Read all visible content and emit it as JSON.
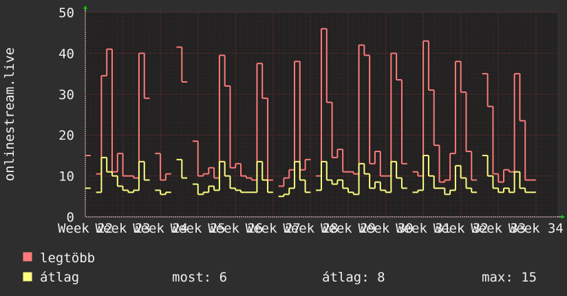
{
  "chart_data": {
    "type": "step",
    "y_label": "onlinestream.live",
    "xlim": [
      0,
      88
    ],
    "xticks": [
      {
        "value": 0,
        "label": "Week 22"
      },
      {
        "value": 7,
        "label": "Week 23"
      },
      {
        "value": 14,
        "label": "Week 24"
      },
      {
        "value": 21,
        "label": "Week 25"
      },
      {
        "value": 28,
        "label": "Week 26"
      },
      {
        "value": 35,
        "label": "Week 27"
      },
      {
        "value": 42,
        "label": "Week 28"
      },
      {
        "value": 49,
        "label": "Week 29"
      },
      {
        "value": 56,
        "label": "Week 30"
      },
      {
        "value": 63,
        "label": "Week 31"
      },
      {
        "value": 70,
        "label": "Week 32"
      },
      {
        "value": 77,
        "label": "Week 33"
      },
      {
        "value": 84,
        "label": "Week 34"
      }
    ],
    "ylim": [
      0,
      50
    ],
    "yticks": [
      0,
      10,
      20,
      30,
      40,
      50
    ],
    "grid": true,
    "series": [
      {
        "name": "legtöbb",
        "color": "#ff7a7a",
        "values": [
          15,
          null,
          10.5,
          34.5,
          41,
          11,
          15.5,
          10,
          10,
          9.5,
          40,
          29,
          null,
          15.5,
          9,
          10.5,
          null,
          41.5,
          33,
          null,
          18.5,
          10,
          10.5,
          12,
          9.5,
          39.5,
          32,
          12,
          13,
          10,
          9.5,
          9,
          37.5,
          29,
          9,
          null,
          7.5,
          9.5,
          11.5,
          38,
          11.5,
          14,
          null,
          10,
          46,
          28,
          14.5,
          16.5,
          11,
          11,
          10.5,
          42,
          39.5,
          13,
          16,
          10,
          10,
          40,
          33.5,
          13,
          null,
          11,
          10,
          43,
          31,
          17.5,
          8.5,
          9,
          15.5,
          38,
          30.5,
          16,
          9,
          null,
          35,
          27,
          10.5,
          8.5,
          11.5,
          11,
          35,
          23.5,
          9,
          9
        ]
      },
      {
        "name": "átlag",
        "color": "#ffff80",
        "values": [
          7,
          null,
          6,
          14.5,
          11,
          10,
          7.5,
          6.5,
          6,
          6.5,
          13.5,
          9,
          null,
          6.5,
          5.5,
          6,
          null,
          14,
          9.5,
          null,
          8,
          5.5,
          6,
          7.5,
          6.5,
          13.5,
          10,
          7,
          6.5,
          6,
          6,
          6,
          13.5,
          9,
          6,
          null,
          5,
          5.5,
          7,
          13.5,
          9,
          6,
          null,
          6.5,
          13.5,
          9,
          8,
          9,
          7,
          6,
          5.5,
          13,
          10.5,
          7,
          8.5,
          6.5,
          6,
          13.5,
          9.5,
          7,
          null,
          6,
          6.5,
          15,
          10,
          7,
          7,
          5.5,
          6.5,
          12.5,
          9.5,
          7,
          6,
          null,
          15,
          10,
          7,
          6,
          7,
          6,
          11,
          7,
          6,
          6
        ]
      }
    ],
    "stats": [
      "most: 6",
      "átlag: 8",
      "max: 15"
    ]
  }
}
